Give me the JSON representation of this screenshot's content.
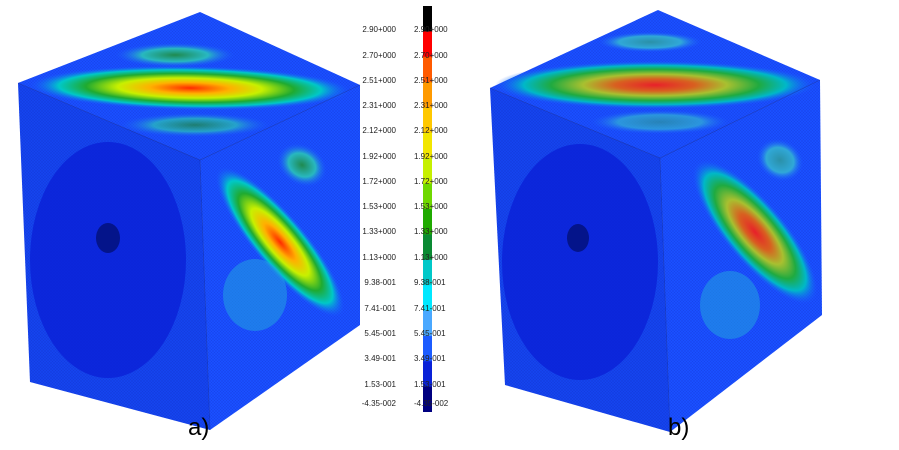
{
  "captions": {
    "a": "a)",
    "b": "b)"
  },
  "legend": {
    "labels_a": [
      "2.90+000",
      "2.70+000",
      "2.51+000",
      "2.31+000",
      "2.12+000",
      "1.92+000",
      "1.72+000",
      "1.53+000",
      "1.33+000",
      "1.13+000",
      "9.38-001",
      "7.41-001",
      "5.45-001",
      "3.49-001",
      "1.53-001",
      "-4.35-002"
    ],
    "labels_b": [
      "2.90+000",
      "2.70+000",
      "2.51+000",
      "2.31+000",
      "2.12+000",
      "1.92+000",
      "1.72+000",
      "1.53+000",
      "1.33+000",
      "1.13+000",
      "9.38-001",
      "7.41-001",
      "5.45-001",
      "3.49-001",
      "1.53-001",
      "-4.35-002"
    ],
    "colors": [
      "#000000",
      "#ff0000",
      "#ff5a00",
      "#ff9a00",
      "#ffc800",
      "#f2e600",
      "#c6f000",
      "#6fd800",
      "#1faa00",
      "#0a8a33",
      "#00c8c8",
      "#00e8ff",
      "#4aa8ff",
      "#1c5cff",
      "#0a22d8",
      "#000080"
    ]
  }
}
